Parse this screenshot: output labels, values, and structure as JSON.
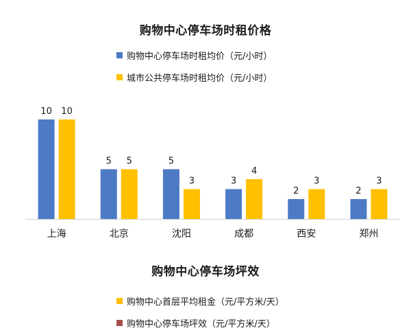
{
  "colors": {
    "series1": "#4d7ac5",
    "series2": "#ffc000",
    "series3": "#a5514b"
  },
  "chart_data": {
    "type": "bar",
    "title": "购物中心停车场时租价格",
    "categories": [
      "上海",
      "北京",
      "沈阳",
      "成都",
      "西安",
      "郑州"
    ],
    "series": [
      {
        "name": "购物中心停车场时租均价（元/小时）",
        "values": [
          10,
          5,
          5,
          3,
          2,
          2
        ]
      },
      {
        "name": "城市公共停车场时租均价（元/小时）",
        "values": [
          10,
          5,
          3,
          4,
          3,
          3
        ]
      }
    ],
    "ylim": [
      0,
      10
    ],
    "grid": false,
    "legend": "top"
  },
  "second_chart": {
    "title": "购物中心停车场坪效",
    "legend": [
      {
        "name": "购物中心首层平均租金（元/平方米/天）",
        "color": "#ffc000"
      },
      {
        "name": "购物中心停车场坪效（元/平方米/天）",
        "color": "#a5514b"
      }
    ]
  }
}
